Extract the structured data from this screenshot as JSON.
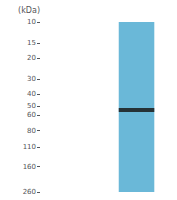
{
  "chart_data": {
    "type": "blot",
    "ylabel": "(kDa)",
    "log": "y",
    "ylim": [
      260,
      10
    ],
    "yticks": [
      260,
      160,
      110,
      80,
      60,
      50,
      40,
      30,
      20,
      15,
      10
    ],
    "grid": false,
    "tick_labels": "y",
    "series": [
      {
        "type": "lane",
        "color": "#6ab8d8",
        "values": [
          [
            10,
            260
          ]
        ]
      },
      {
        "type": "band",
        "color": "#1a1a1a",
        "values": [
          54
        ]
      }
    ]
  }
}
